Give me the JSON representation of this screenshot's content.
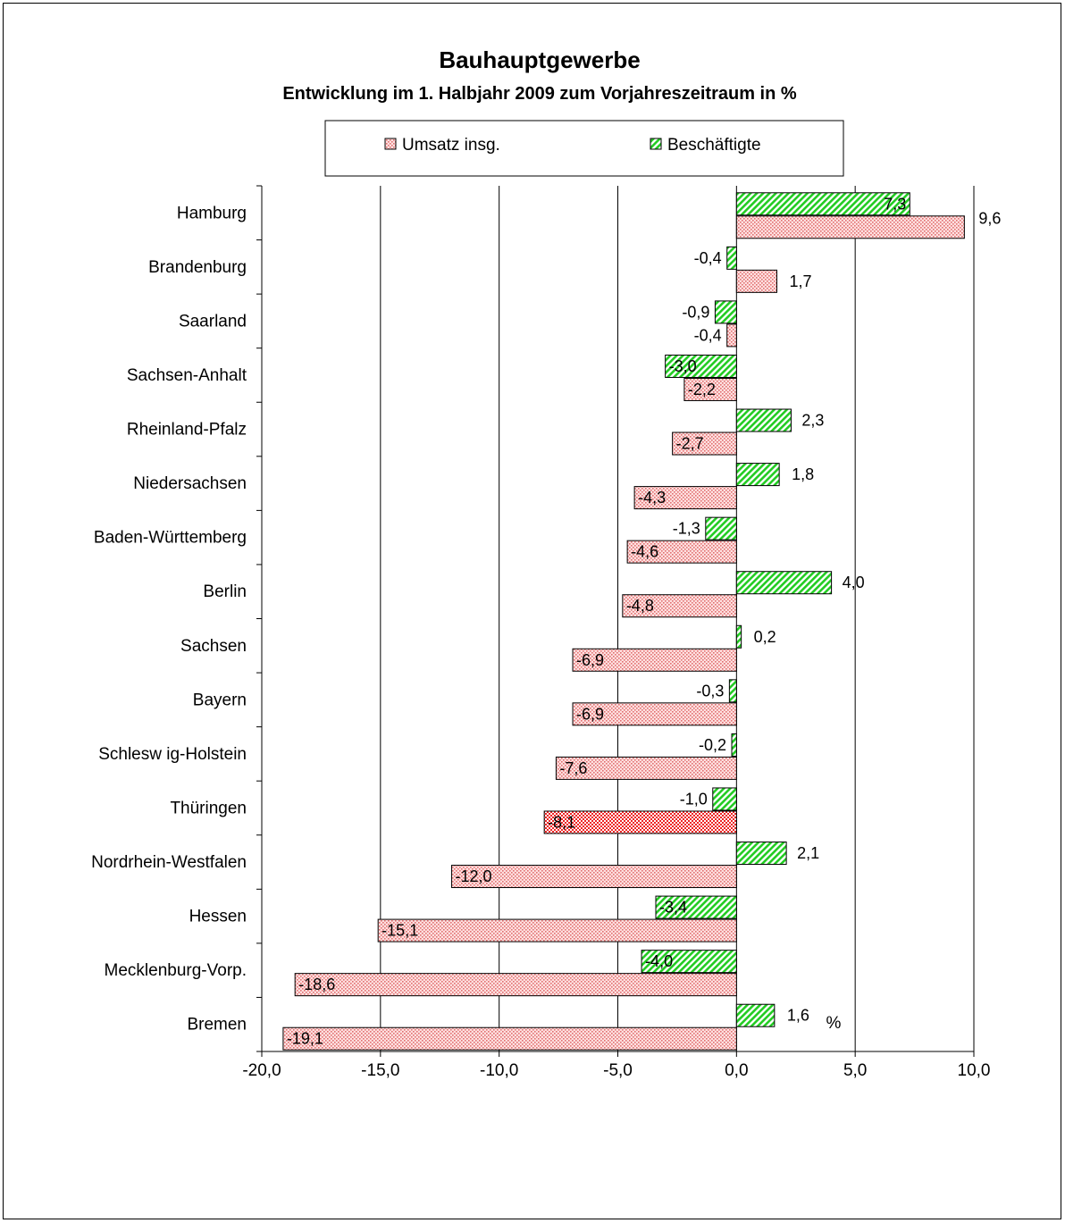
{
  "chart_data": {
    "type": "bar",
    "orientation": "horizontal",
    "title": "Bauhauptgewerbe",
    "subtitle": "Entwicklung im 1. Halbjahr 2009 zum Vorjahreszeitraum in %",
    "xlabel": "%",
    "ylabel": "",
    "xlim": [
      -20,
      10
    ],
    "xticks": [
      -20,
      -15,
      -10,
      -5,
      0,
      5,
      10
    ],
    "xtick_labels": [
      "-20,0",
      "-15,0",
      "-10,0",
      "-5,0",
      "0,0",
      "5,0",
      "10,0"
    ],
    "grid": "vertical",
    "legend_position": "top",
    "categories": [
      "Hamburg",
      "Brandenburg",
      "Saarland",
      "Sachsen-Anhalt",
      "Rheinland-Pfalz",
      "Niedersachsen",
      "Baden-Württemberg",
      "Berlin",
      "Sachsen",
      "Bayern",
      "Schlesw ig-Holstein",
      "Thüringen",
      "Nordrhein-Westfalen",
      "Hessen",
      "Mecklenburg-Vorp.",
      "Bremen"
    ],
    "series": [
      {
        "name": "Beschäftigte",
        "values": [
          7.3,
          -0.4,
          -0.9,
          -3.0,
          2.3,
          1.8,
          -1.3,
          4.0,
          0.2,
          -0.3,
          -0.2,
          -1.0,
          2.1,
          -3.4,
          -4.0,
          1.6
        ],
        "labels": [
          "7,3",
          "-0,4",
          "-0,9",
          "-3,0",
          "2,3",
          "1,8",
          "-1,3",
          "4,0",
          "0,2",
          "-0,3",
          "-0,2",
          "-1,0",
          "2,1",
          "-3,4",
          "-4,0",
          "1,6"
        ],
        "color": "#33cc33"
      },
      {
        "name": "Umsatz insg.",
        "values": [
          9.6,
          1.7,
          -0.4,
          -2.2,
          -2.7,
          -4.3,
          -4.6,
          -4.8,
          -6.9,
          -6.9,
          -7.6,
          -8.1,
          -12.0,
          -15.1,
          -18.6,
          -19.1
        ],
        "labels": [
          "9,6",
          "1,7",
          "-0,4",
          "-2,2",
          "-2,7",
          "-4,3",
          "-4,6",
          "-4,8",
          "-6,9",
          "-6,9",
          "-7,6",
          "-8,1",
          "-12,0",
          "-15,1",
          "-18,6",
          "-19,1"
        ],
        "color": "#ff9999",
        "highlight_color": "#ff3333",
        "highlight_category": "Thüringen"
      }
    ],
    "legend_labels": [
      "Umsatz insg.",
      "Beschäftigte"
    ]
  }
}
